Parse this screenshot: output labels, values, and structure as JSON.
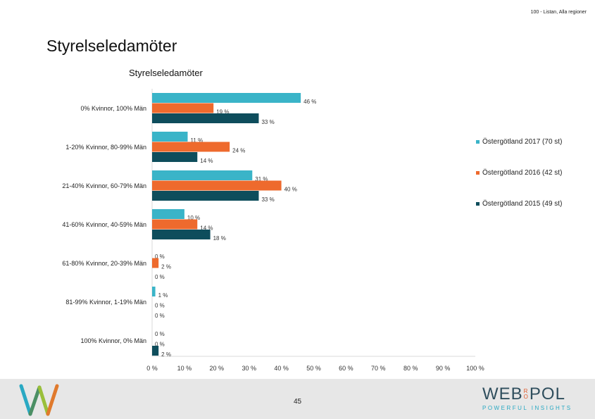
{
  "header": {
    "note": "100 - Listan, Alla regioner",
    "page_title": "Styrelseledamöter"
  },
  "footer": {
    "page_number": "45",
    "brand_left": "WEB",
    "brand_mid_top": "R",
    "brand_mid_bottom": "O",
    "brand_right": "POL",
    "tagline": "POWERFUL INSIGHTS"
  },
  "chart_data": {
    "type": "bar",
    "orientation": "horizontal",
    "title": "Styrelseledamöter",
    "categories": [
      "0% Kvinnor, 100% Män",
      "1-20% Kvinnor, 80-99% Män",
      "21-40% Kvinnor, 60-79% Män",
      "41-60% Kvinnor, 40-59% Män",
      "61-80% Kvinnor, 20-39% Män",
      "81-99% Kvinnor, 1-19% Män",
      "100% Kvinnor, 0% Män"
    ],
    "series": [
      {
        "name": "Östergötland 2017 (70 st)",
        "color": "#3ab4c8",
        "values": [
          46,
          11,
          31,
          10,
          0,
          1,
          0
        ],
        "labels": [
          "46 %",
          "11 %",
          "31 %",
          "10 %",
          "0 %",
          "1 %",
          "0 %"
        ]
      },
      {
        "name": "Östergötland 2016 (42 st)",
        "color": "#ee6a2d",
        "values": [
          19,
          24,
          40,
          14,
          2,
          0,
          0
        ],
        "labels": [
          "19 %",
          "24 %",
          "40 %",
          "14 %",
          "2 %",
          "0 %",
          "0 %"
        ]
      },
      {
        "name": "Östergötland 2015 (49 st)",
        "color": "#0e4d5c",
        "values": [
          33,
          14,
          33,
          18,
          0,
          0,
          2
        ],
        "labels": [
          "33 %",
          "14 %",
          "33 %",
          "18 %",
          "0 %",
          "0 %",
          "2 %"
        ]
      }
    ],
    "xlim": [
      0,
      100
    ],
    "xticks": [
      "0 %",
      "10 %",
      "20 %",
      "30 %",
      "40 %",
      "50 %",
      "60 %",
      "70 %",
      "80 %",
      "90 %",
      "100 %"
    ],
    "legend_position": "right",
    "grid": false
  }
}
